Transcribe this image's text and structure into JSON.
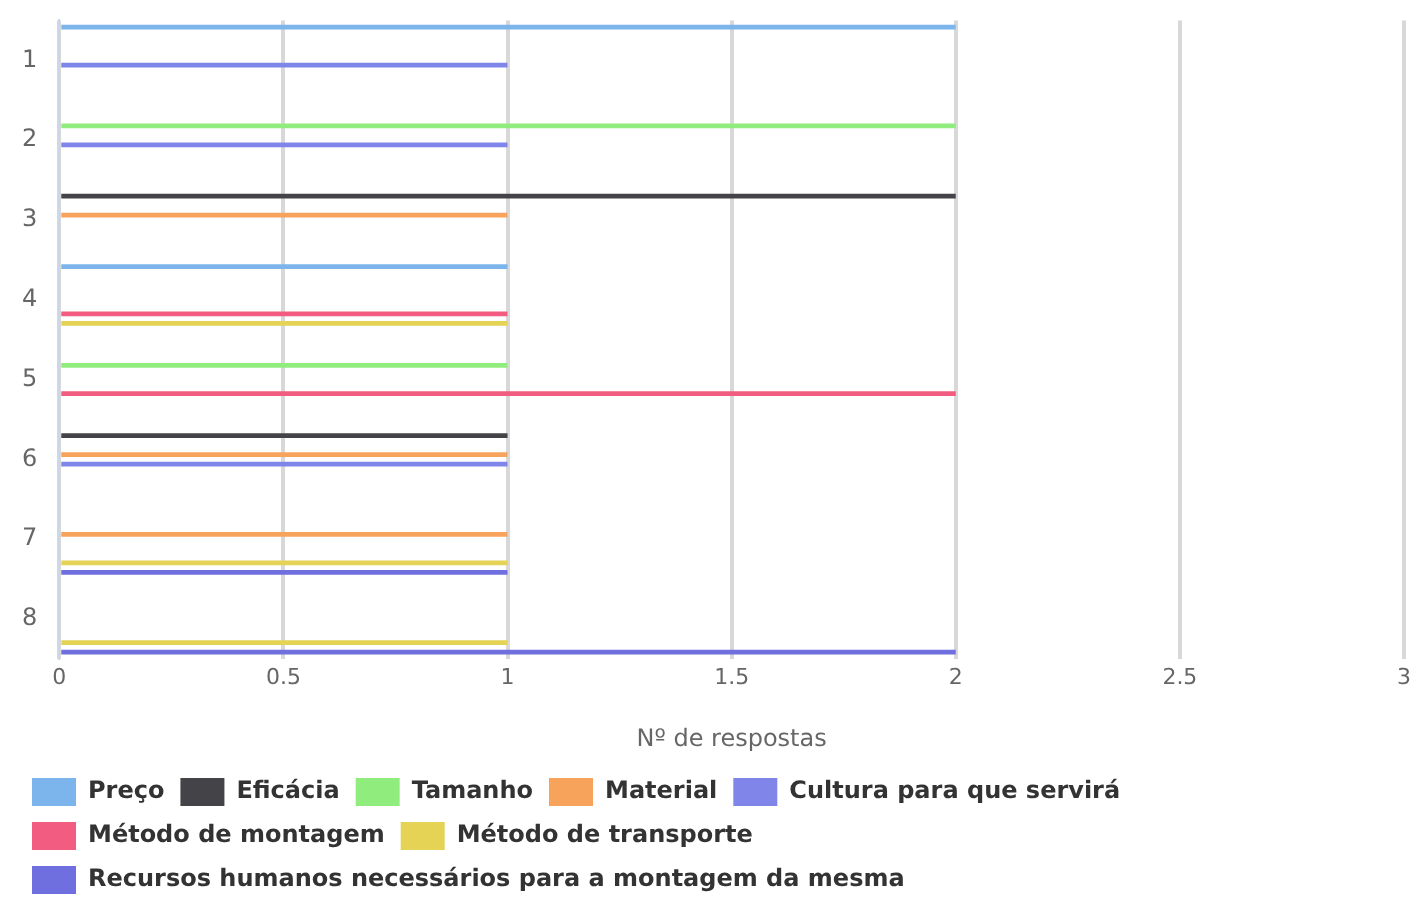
{
  "chart_data": {
    "type": "bar",
    "orientation": "horizontal",
    "xlabel": "Nº de respostas",
    "categories": [
      "1",
      "2",
      "3",
      "4",
      "5",
      "6",
      "7",
      "8"
    ],
    "series": [
      {
        "name": "Preço",
        "color": "#7cb5ec",
        "values": [
          2,
          null,
          null,
          1,
          null,
          null,
          null,
          null
        ]
      },
      {
        "name": "Eficácia",
        "color": "#434348",
        "values": [
          null,
          null,
          2,
          null,
          null,
          1,
          null,
          null
        ]
      },
      {
        "name": "Tamanho",
        "color": "#90ed7d",
        "values": [
          null,
          2,
          null,
          null,
          1,
          null,
          null,
          null
        ]
      },
      {
        "name": "Material",
        "color": "#f7a35c",
        "values": [
          null,
          null,
          1,
          null,
          null,
          1,
          1,
          null
        ]
      },
      {
        "name": "Cultura para que servirá",
        "color": "#8085e9",
        "values": [
          1,
          1,
          null,
          null,
          null,
          1,
          null,
          null
        ]
      },
      {
        "name": "Método de montagem",
        "color": "#f15c80",
        "values": [
          null,
          null,
          null,
          1,
          2,
          null,
          null,
          null
        ]
      },
      {
        "name": "Método de transporte",
        "color": "#e4d354",
        "values": [
          null,
          null,
          null,
          1,
          null,
          null,
          1,
          1
        ]
      },
      {
        "name": "Recursos humanos necessários para a montagem da mesma",
        "color": "#6f6fe0",
        "values": [
          null,
          null,
          null,
          null,
          null,
          null,
          1,
          2
        ]
      }
    ],
    "xlim": [
      0,
      3
    ],
    "xticks": [
      0,
      0.5,
      1,
      1.5,
      2,
      2.5,
      3
    ],
    "grid": "x",
    "legend": "bottom"
  }
}
